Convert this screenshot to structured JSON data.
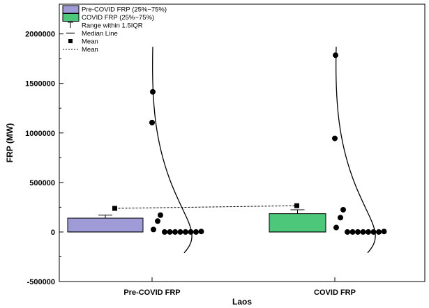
{
  "chart_data": {
    "type": "box",
    "xlabel": "Laos",
    "ylabel": "FRP (MW)",
    "ylim": [
      -500000,
      2300000
    ],
    "yticks": [
      -500000,
      0,
      500000,
      1000000,
      1500000,
      2000000
    ],
    "ytick_labels": [
      "-500000",
      "0",
      "500000",
      "1000000",
      "1500000",
      "2000000"
    ],
    "categories": [
      "Pre-COVID FRP",
      "COVID FRP"
    ],
    "colors": {
      "pre": "#9e9bd6",
      "covid": "#4dc87a"
    },
    "boxes": [
      {
        "category": "Pre-COVID FRP",
        "q1": 0,
        "q3": 140000,
        "median": 0,
        "whisker_high": 170000,
        "mean": 235000,
        "points": [
          1415000,
          1105000,
          170000,
          110000,
          25000,
          0,
          0,
          0,
          0,
          0,
          0,
          0,
          5000
        ]
      },
      {
        "category": "COVID FRP",
        "q1": 0,
        "q3": 185000,
        "median": 0,
        "whisker_high": 225000,
        "mean": 262000,
        "points": [
          1785000,
          945000,
          225000,
          145000,
          45000,
          0,
          0,
          0,
          0,
          0,
          0,
          0,
          5000
        ]
      }
    ],
    "legend": [
      {
        "label": "Pre-COVID FRP (25%~75%)",
        "kind": "box-pre"
      },
      {
        "label": "COVID FRP (25%~75%)",
        "kind": "box-covid"
      },
      {
        "label": "Range within 1.5IQR",
        "kind": "whisker"
      },
      {
        "label": "Median Line",
        "kind": "median"
      },
      {
        "label": "Mean",
        "kind": "mean"
      },
      {
        "label": "Mean",
        "kind": "mean-line"
      }
    ],
    "legend_position": "top-left"
  }
}
